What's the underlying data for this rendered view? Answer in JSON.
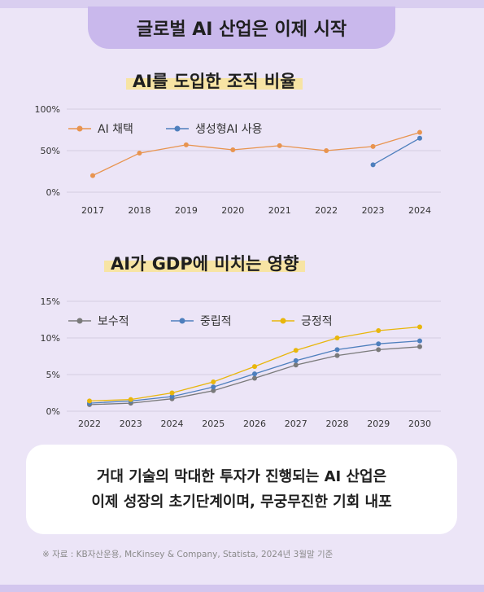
{
  "title": "글로벌 AI 산업은 이제 시작",
  "charts_header": {
    "chart1_title": "AI를 도입한 조직 비율",
    "chart2_title": "AI가 GDP에 미치는 영향"
  },
  "chart_data": [
    {
      "type": "line",
      "title": "AI를 도입한 조직 비율",
      "categories": [
        "2017",
        "2018",
        "2019",
        "2020",
        "2021",
        "2022",
        "2023",
        "2024"
      ],
      "y_ticks": [
        "100%",
        "50%",
        "0%"
      ],
      "ylim": [
        0,
        100
      ],
      "grid": true,
      "legend_position": "top-left",
      "series": [
        {
          "name": "AI 채택",
          "color": "#e8944f",
          "values": [
            20,
            47,
            57,
            51,
            56,
            50,
            55,
            72
          ]
        },
        {
          "name": "생성형AI 사용",
          "color": "#4e7fbd",
          "values": [
            null,
            null,
            null,
            null,
            null,
            null,
            33,
            65
          ]
        }
      ]
    },
    {
      "type": "line",
      "title": "AI가 GDP에 미치는 영향",
      "categories": [
        "2022",
        "2023",
        "2024",
        "2025",
        "2026",
        "2027",
        "2028",
        "2029",
        "2030"
      ],
      "y_ticks": [
        "15%",
        "10%",
        "5%",
        "0%"
      ],
      "ylim": [
        0,
        15
      ],
      "grid": true,
      "legend_position": "top-left",
      "series": [
        {
          "name": "보수적",
          "color": "#7a7a7a",
          "values": [
            0.9,
            1.1,
            1.7,
            2.8,
            4.5,
            6.3,
            7.6,
            8.4,
            8.8
          ]
        },
        {
          "name": "중립적",
          "color": "#4e7fbd",
          "values": [
            1.1,
            1.4,
            2.0,
            3.3,
            5.1,
            6.9,
            8.4,
            9.2,
            9.6
          ]
        },
        {
          "name": "긍정적",
          "color": "#e8b60c",
          "values": [
            1.4,
            1.6,
            2.5,
            4.0,
            6.1,
            8.3,
            10.0,
            11.0,
            11.5
          ]
        }
      ]
    }
  ],
  "summary": {
    "line1": "거대 기술의 막대한 투자가 진행되는 AI 산업은",
    "line2": "이제 성장의 초기단계이며, 무궁무진한 기회 내포"
  },
  "source": "※ 자료 : KB자산운용, McKinsey & Company, Statista, 2024년 3월말 기준"
}
